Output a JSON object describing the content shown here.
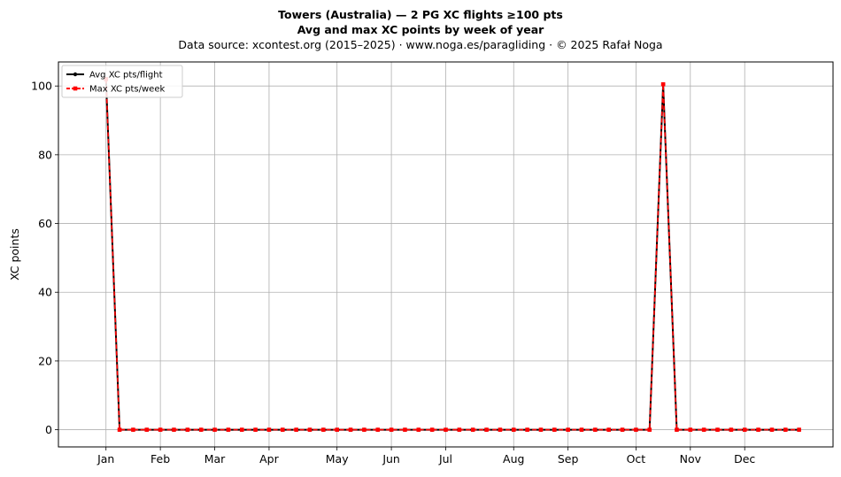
{
  "header": {
    "title_line1": "Towers (Australia)  —  2 PG XC flights ≥100 pts",
    "title_line2": "Avg and max XC points by week of year",
    "source_line": "Data source: xcontest.org (2015–2025)  ·  www.noga.es/paragliding  ·  © 2025 Rafał Noga"
  },
  "chart_data": {
    "type": "line",
    "title": "Towers (Australia)  —  2 PG XC flights ≥100 pts",
    "subtitle": "Avg and max XC points by week of year",
    "xlabel": "",
    "ylabel": "XC points",
    "xlim": [
      -2.5,
      54.5
    ],
    "ylim": [
      -5,
      107
    ],
    "x_ticks": [
      {
        "week": 1,
        "label": "Jan"
      },
      {
        "week": 5,
        "label": "Feb"
      },
      {
        "week": 9,
        "label": "Mar"
      },
      {
        "week": 13,
        "label": "Apr"
      },
      {
        "week": 18,
        "label": "May"
      },
      {
        "week": 22,
        "label": "Jun"
      },
      {
        "week": 26,
        "label": "Jul"
      },
      {
        "week": 31,
        "label": "Aug"
      },
      {
        "week": 35,
        "label": "Sep"
      },
      {
        "week": 40,
        "label": "Oct"
      },
      {
        "week": 44,
        "label": "Nov"
      },
      {
        "week": 48,
        "label": "Dec"
      }
    ],
    "y_ticks": [
      0,
      20,
      40,
      60,
      80,
      100
    ],
    "grid": true,
    "legend_position": "top-left",
    "x": [
      1,
      2,
      3,
      4,
      5,
      6,
      7,
      8,
      9,
      10,
      11,
      12,
      13,
      14,
      15,
      16,
      17,
      18,
      19,
      20,
      21,
      22,
      23,
      24,
      25,
      26,
      27,
      28,
      29,
      30,
      31,
      32,
      33,
      34,
      35,
      36,
      37,
      38,
      39,
      40,
      41,
      42,
      43,
      44,
      45,
      46,
      47,
      48,
      49,
      50,
      51,
      52
    ],
    "series": [
      {
        "name": "Avg XC pts/flight",
        "color": "#000000",
        "style": "solid",
        "marker": "circle",
        "values": [
          102,
          0,
          0,
          0,
          0,
          0,
          0,
          0,
          0,
          0,
          0,
          0,
          0,
          0,
          0,
          0,
          0,
          0,
          0,
          0,
          0,
          0,
          0,
          0,
          0,
          0,
          0,
          0,
          0,
          0,
          0,
          0,
          0,
          0,
          0,
          0,
          0,
          0,
          0,
          0,
          0,
          100.5,
          0,
          0,
          0,
          0,
          0,
          0,
          0,
          0,
          0,
          0
        ]
      },
      {
        "name": "Max XC pts/week",
        "color": "#ff0000",
        "style": "dashed",
        "marker": "square",
        "values": [
          102,
          0,
          0,
          0,
          0,
          0,
          0,
          0,
          0,
          0,
          0,
          0,
          0,
          0,
          0,
          0,
          0,
          0,
          0,
          0,
          0,
          0,
          0,
          0,
          0,
          0,
          0,
          0,
          0,
          0,
          0,
          0,
          0,
          0,
          0,
          0,
          0,
          0,
          0,
          0,
          0,
          100.5,
          0,
          0,
          0,
          0,
          0,
          0,
          0,
          0,
          0,
          0
        ]
      }
    ]
  }
}
